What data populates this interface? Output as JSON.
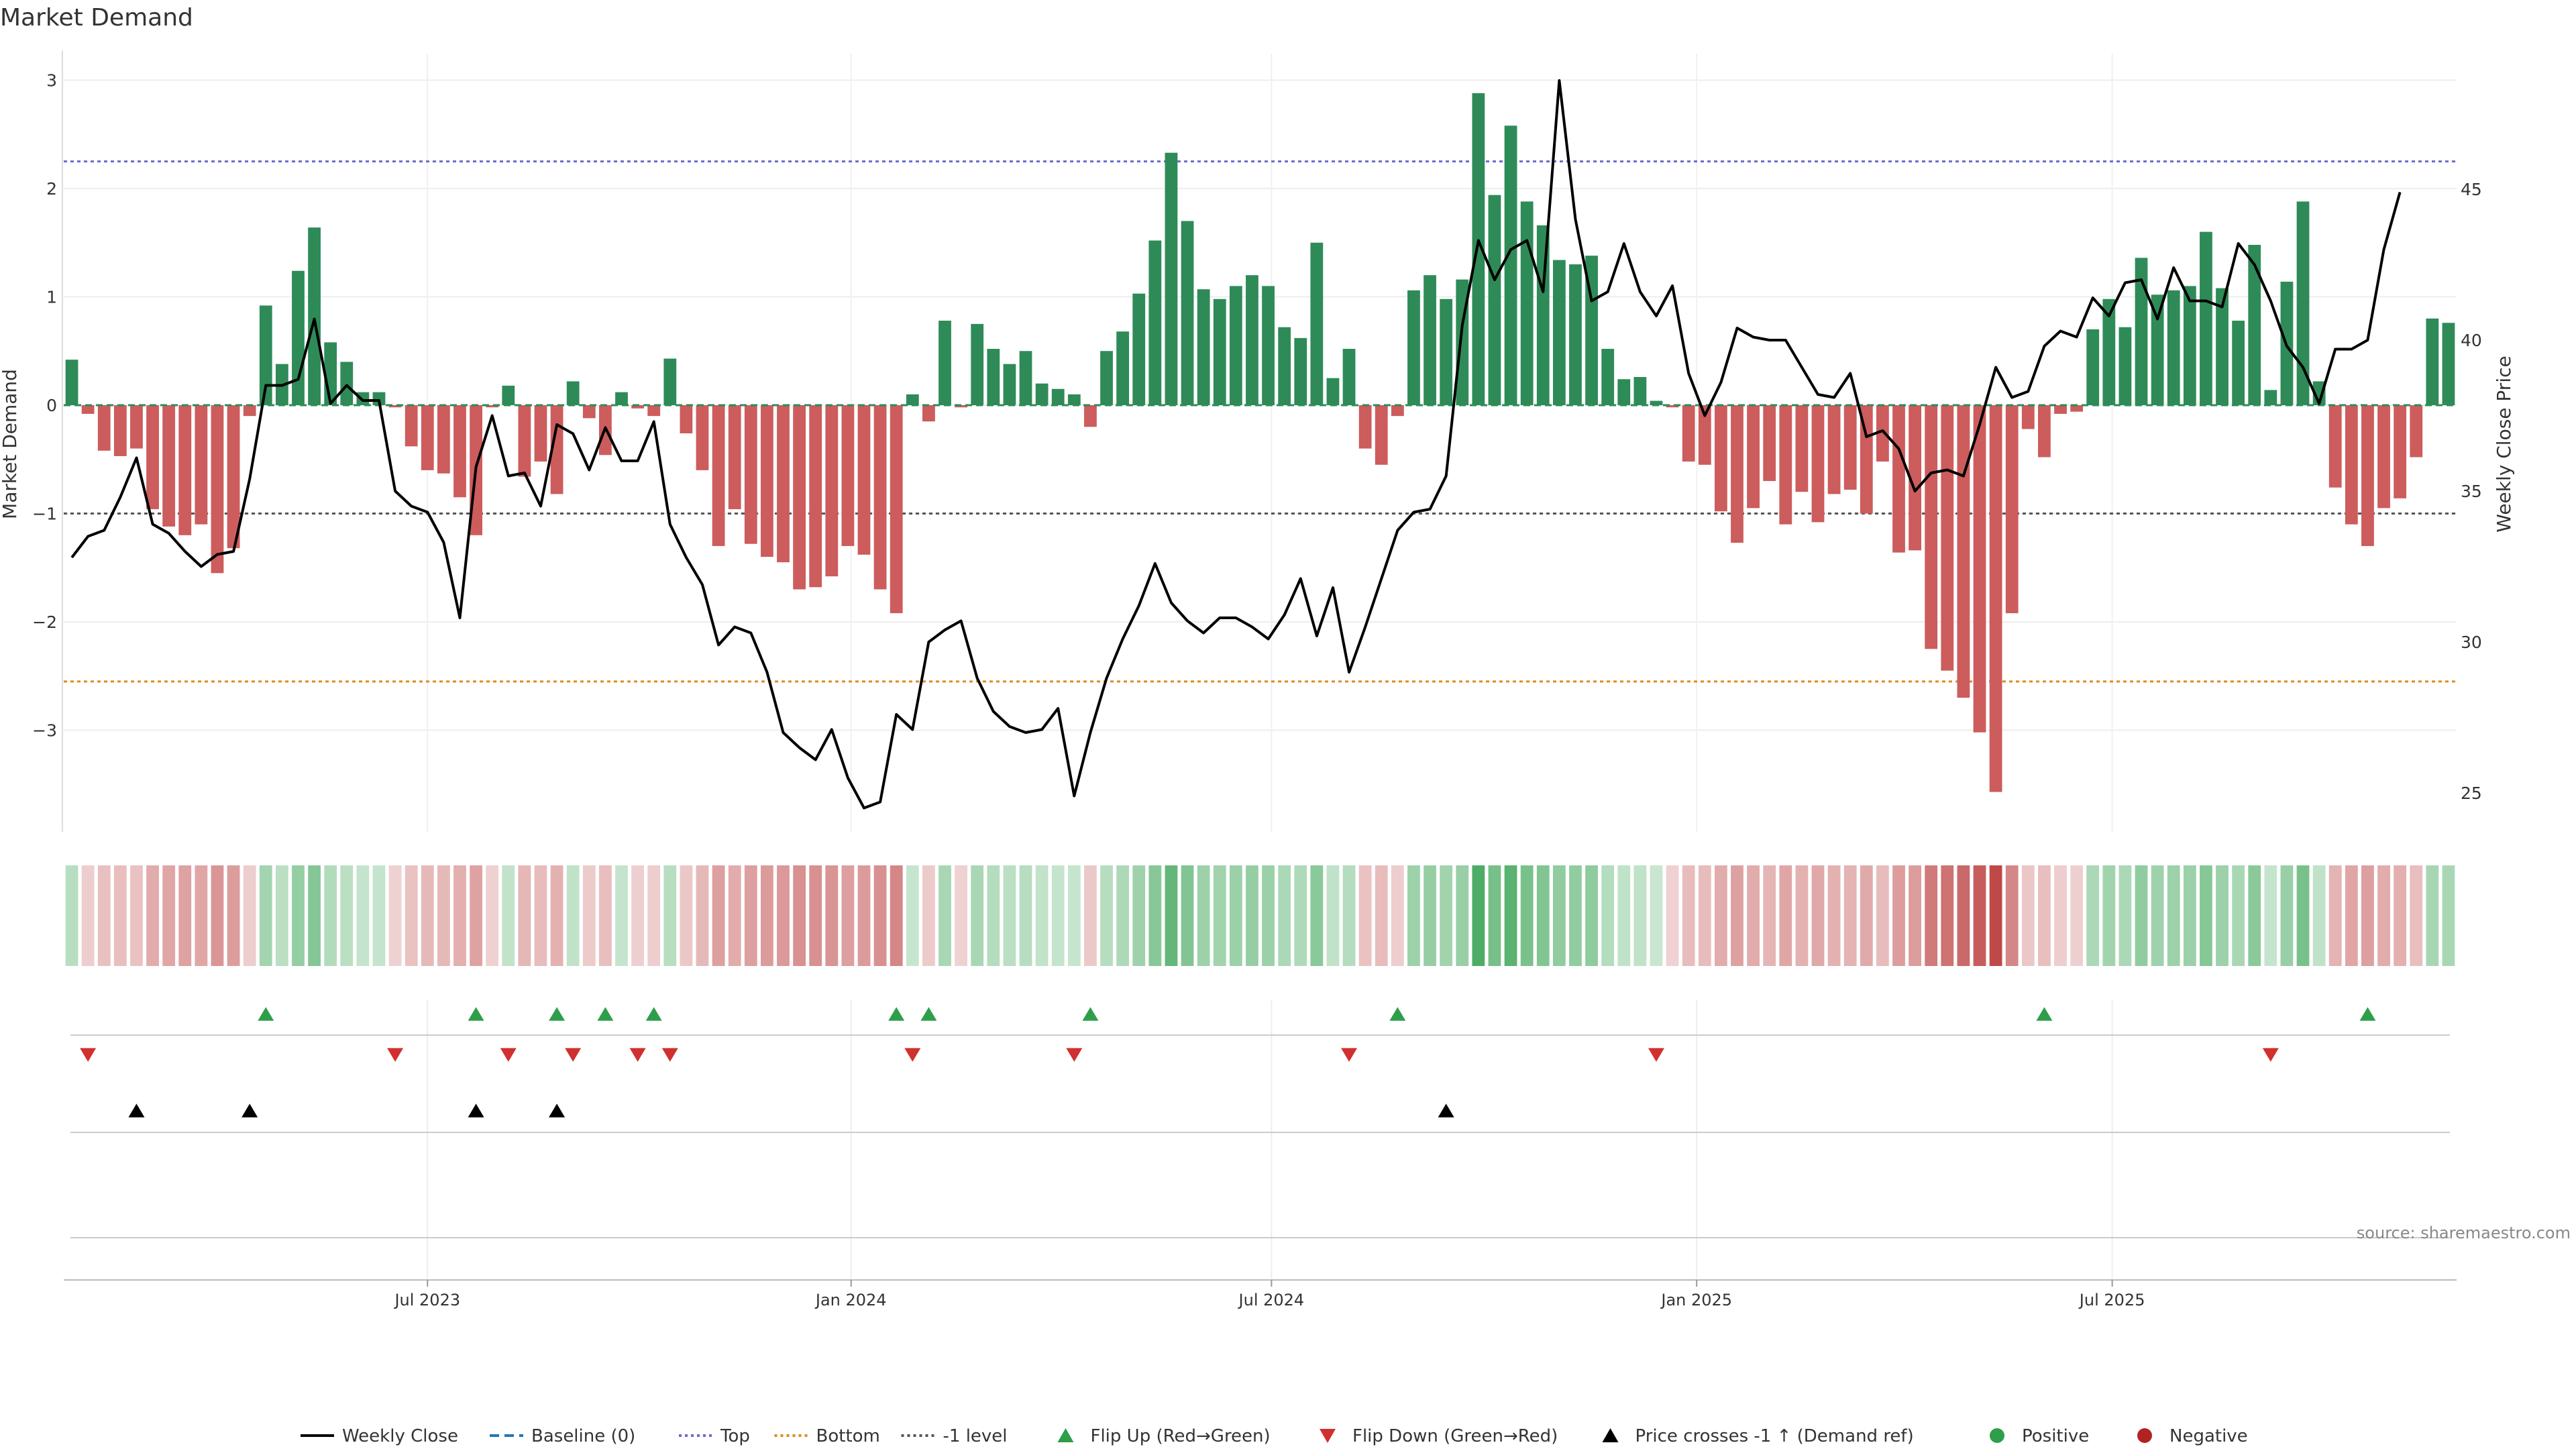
{
  "chart_data": {
    "type": "bar",
    "title": "Market Demand",
    "ylabel": "Market Demand",
    "y2label": "Weekly Close Price",
    "ylim": [
      -3.9,
      3.2
    ],
    "y2lim": [
      23.6,
      49.6
    ],
    "yticks": [
      3,
      2,
      1,
      0,
      -1,
      -2,
      -3
    ],
    "yticks_labels": [
      "3",
      "2",
      "1",
      "0",
      "−1",
      "−2",
      "−3"
    ],
    "y2ticks": [
      45,
      40,
      35,
      30,
      25
    ],
    "y2ticks_labels": [
      "45",
      "40",
      "35",
      "30",
      "25"
    ],
    "xticks": [
      {
        "label": "Jul 2023",
        "index": 22
      },
      {
        "label": "Jan 2024",
        "index": 48.2
      },
      {
        "label": "Jul 2024",
        "index": 74.2
      },
      {
        "label": "Jan 2025",
        "index": 100.5
      },
      {
        "label": "Jul 2025",
        "index": 126.2
      }
    ],
    "reference_lines": [
      {
        "name": "Top",
        "value": 2.25,
        "color": "#6a6ad0"
      },
      {
        "name": "-1 level",
        "value": -1,
        "color": "#555555"
      },
      {
        "name": "Bottom",
        "value": -2.55,
        "color": "#e08a1e"
      }
    ],
    "series": [
      {
        "name": "Market Demand",
        "values": [
          0.42,
          -0.08,
          -0.42,
          -0.47,
          -0.4,
          -0.96,
          -1.12,
          -1.2,
          -1.1,
          -1.55,
          -1.32,
          -0.1,
          0.92,
          0.38,
          1.24,
          1.64,
          0.58,
          0.4,
          0.12,
          0.12,
          -0.02,
          -0.38,
          -0.6,
          -0.63,
          -0.85,
          -1.2,
          -0.02,
          0.18,
          -0.66,
          -0.52,
          -0.82,
          0.22,
          -0.12,
          -0.46,
          0.12,
          -0.03,
          -0.1,
          0.43,
          -0.26,
          -0.6,
          -1.3,
          -0.96,
          -1.28,
          -1.4,
          -1.45,
          -1.7,
          -1.68,
          -1.58,
          -1.3,
          -1.38,
          -1.7,
          -1.92,
          0.1,
          -0.15,
          0.78,
          -0.02,
          0.75,
          0.52,
          0.38,
          0.5,
          0.2,
          0.15,
          0.1,
          -0.2,
          0.5,
          0.68,
          1.03,
          1.52,
          2.33,
          1.7,
          1.07,
          0.98,
          1.1,
          1.2,
          1.1,
          0.72,
          0.62,
          1.5,
          0.25,
          0.52,
          -0.4,
          -0.55,
          -0.1,
          1.06,
          1.2,
          0.98,
          1.16,
          2.88,
          1.94,
          2.58,
          1.88,
          1.66,
          1.34,
          1.3,
          1.38,
          0.52,
          0.24,
          0.26,
          0.04,
          -0.02,
          -0.52,
          -0.55,
          -0.98,
          -1.27,
          -0.95,
          -0.7,
          -1.1,
          -0.8,
          -1.08,
          -0.82,
          -0.78,
          -1.0,
          -0.52,
          -1.36,
          -1.34,
          -2.25,
          -2.45,
          -2.7,
          -3.02,
          -3.57,
          -1.92,
          -0.22,
          -0.48,
          -0.08,
          -0.06,
          0.7,
          0.98,
          0.72,
          1.36,
          1.02,
          1.06,
          1.1,
          1.6,
          1.08,
          0.78,
          1.48,
          0.14,
          1.14,
          1.88,
          0.22,
          -0.76,
          -1.1,
          -1.3,
          -0.95,
          -0.86,
          -0.48,
          0.8,
          0.76
        ]
      },
      {
        "name": "Weekly Close",
        "axis": "right",
        "values": [
          32.8,
          33.5,
          33.7,
          34.8,
          36.1,
          33.9,
          33.6,
          33.0,
          32.5,
          32.9,
          33.0,
          35.4,
          38.5,
          38.5,
          38.7,
          40.7,
          37.9,
          38.5,
          38.0,
          38.0,
          35.0,
          34.5,
          34.3,
          33.3,
          30.8,
          35.8,
          37.5,
          35.5,
          35.6,
          34.5,
          37.2,
          36.9,
          35.7,
          37.1,
          36.0,
          36.0,
          37.3,
          33.9,
          32.8,
          31.9,
          29.9,
          30.5,
          30.3,
          29.0,
          27.0,
          26.5,
          26.1,
          27.1,
          25.5,
          24.5,
          24.7,
          27.6,
          27.1,
          30.0,
          30.4,
          30.7,
          28.8,
          27.7,
          27.2,
          27.0,
          27.1,
          27.8,
          24.9,
          27.0,
          28.8,
          30.1,
          31.2,
          32.6,
          31.3,
          30.7,
          30.3,
          30.8,
          30.8,
          30.5,
          30.1,
          30.9,
          32.1,
          30.2,
          31.8,
          29.0,
          30.5,
          32.1,
          33.7,
          34.3,
          34.4,
          35.5,
          40.5,
          43.3,
          42.0,
          43.0,
          43.3,
          41.6,
          48.6,
          44.0,
          41.3,
          41.6,
          43.2,
          41.6,
          40.8,
          41.8,
          38.9,
          37.5,
          38.6,
          40.4,
          40.1,
          40.0,
          40.0,
          39.1,
          38.2,
          38.1,
          38.9,
          36.8,
          37.0,
          36.4,
          35.0,
          35.6,
          35.7,
          35.5,
          37.2,
          39.1,
          38.1,
          38.3,
          39.8,
          40.3,
          40.1,
          41.4,
          40.8,
          41.9,
          42.0,
          40.7,
          42.4,
          41.3,
          41.3,
          41.1,
          43.2,
          42.5,
          41.3,
          39.8,
          39.1,
          37.9,
          39.7,
          39.7,
          40.0,
          43.0,
          44.9
        ]
      }
    ],
    "signals": {
      "flip_up": [
        12,
        25,
        30,
        33,
        36,
        51,
        53,
        63,
        82,
        122,
        142
      ],
      "flip_down": [
        1,
        20,
        27,
        31,
        35,
        37,
        52,
        62,
        79,
        98,
        136
      ],
      "price_cross": [
        4,
        11,
        25,
        30,
        85
      ]
    },
    "legend_position": "bottom",
    "legend": [
      {
        "label": "Weekly Close",
        "kind": "line",
        "color": "#000000"
      },
      {
        "label": "Baseline (0)",
        "kind": "dash",
        "color": "#1f77b4"
      },
      {
        "label": "Top",
        "kind": "dot",
        "color": "#6a6ad0"
      },
      {
        "label": "Bottom",
        "kind": "dot",
        "color": "#e08a1e"
      },
      {
        "label": "-1 level",
        "kind": "dot",
        "color": "#555555"
      },
      {
        "label": "Flip Up (Red→Green)",
        "kind": "tri-up",
        "color": "#2e9e4a"
      },
      {
        "label": "Flip Down (Green→Red)",
        "kind": "tri-down",
        "color": "#d0302e"
      },
      {
        "label": "Price crosses -1 ↑ (Demand ref)",
        "kind": "tri-up",
        "color": "#000000"
      },
      {
        "label": "Positive",
        "kind": "dot-marker",
        "color": "#2e9e4a"
      },
      {
        "label": "Negative",
        "kind": "dot-marker",
        "color": "#b22222"
      }
    ],
    "source": "source: sharemaestro.com",
    "colors": {
      "positive": "#2e8b57",
      "negative": "#cd5c5c",
      "price": "#000000"
    }
  }
}
